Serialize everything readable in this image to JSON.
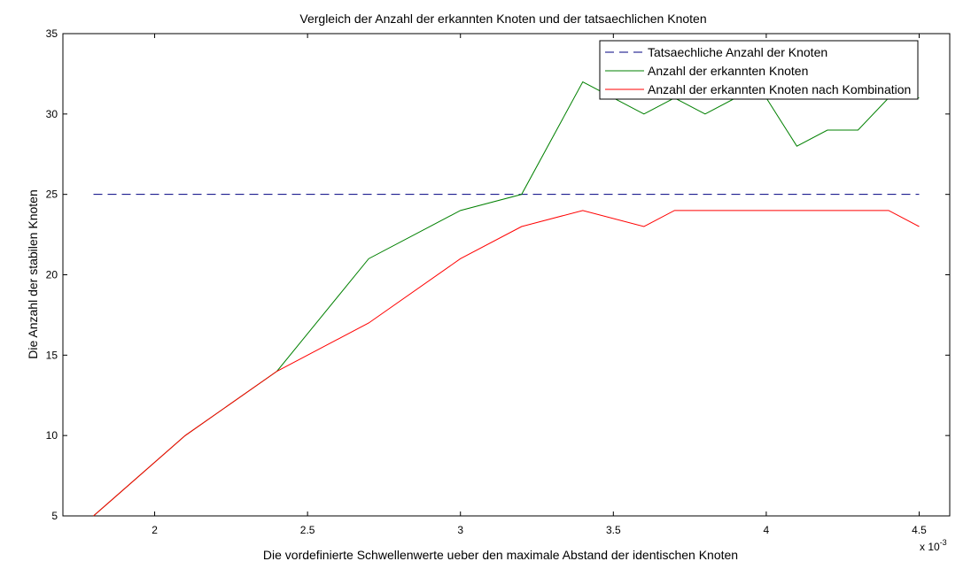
{
  "chart_data": {
    "type": "line",
    "title": "Vergleich der Anzahl der erkannten Knoten und der tatsaechlichen Knoten",
    "xlabel": "Die vordefinierte Schwellenwerte ueber den maximale Abstand der identischen Knoten",
    "ylabel": "Die Anzahl der stabilen Knoten",
    "x_multiplier_label": {
      "base": "x 10",
      "exponent": "-3"
    },
    "xlim": [
      1.7,
      4.6
    ],
    "ylim": [
      5,
      35
    ],
    "xticks": [
      2,
      2.5,
      3,
      3.5,
      4,
      4.5
    ],
    "xtick_labels": [
      "2",
      "2.5",
      "3",
      "3.5",
      "4",
      "4.5"
    ],
    "yticks": [
      5,
      10,
      15,
      20,
      25,
      30,
      35
    ],
    "ytick_labels": [
      "5",
      "10",
      "15",
      "20",
      "25",
      "30",
      "35"
    ],
    "grid": false,
    "legend_position": "top-right",
    "series": [
      {
        "name": "Tatsaechliche Anzahl der Knoten",
        "color": "#000080",
        "dash": "dashed",
        "x": [
          1.8,
          4.5
        ],
        "y": [
          25,
          25
        ]
      },
      {
        "name": "Anzahl der erkannten Knoten",
        "color": "#008000",
        "dash": "solid",
        "x": [
          1.8,
          2.1,
          2.4,
          2.7,
          3.0,
          3.2,
          3.4,
          3.5,
          3.6,
          3.7,
          3.8,
          3.9,
          4.0,
          4.1,
          4.2,
          4.3,
          4.4,
          4.5
        ],
        "y": [
          5,
          10,
          14,
          21,
          24,
          25,
          32,
          31,
          30,
          31,
          30,
          31,
          31,
          28,
          29,
          29,
          31,
          31
        ]
      },
      {
        "name": "Anzahl der erkannten Knoten nach Kombination",
        "color": "#ff0000",
        "dash": "solid",
        "x": [
          1.8,
          2.1,
          2.4,
          2.7,
          3.0,
          3.2,
          3.4,
          3.6,
          3.7,
          3.8,
          3.9,
          4.0,
          4.1,
          4.2,
          4.3,
          4.4,
          4.5
        ],
        "y": [
          5,
          10,
          14,
          17,
          21,
          23,
          24,
          23,
          24,
          24,
          24,
          24,
          24,
          24,
          24,
          24,
          23
        ]
      }
    ]
  }
}
